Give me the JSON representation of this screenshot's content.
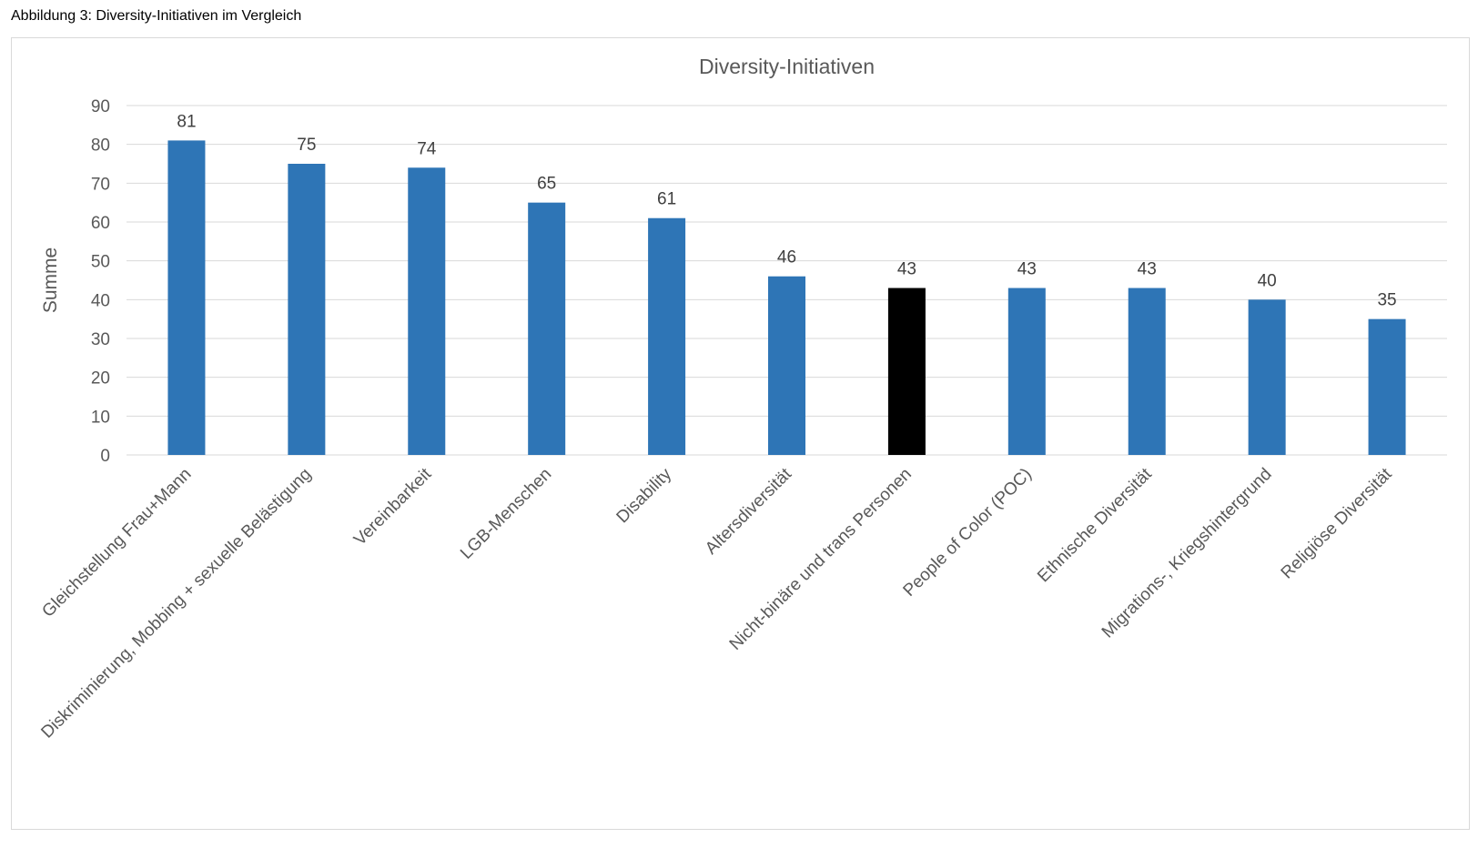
{
  "caption": "Abbildung 3: Diversity-Initiativen im Vergleich",
  "chart_data": {
    "type": "bar",
    "title": "Diversity-Initiativen",
    "xlabel": "",
    "ylabel": "Summe",
    "ylim": [
      0,
      90
    ],
    "yticks": [
      0,
      10,
      20,
      30,
      40,
      50,
      60,
      70,
      80,
      90
    ],
    "grid": true,
    "legend": "none",
    "categories": [
      "Gleichstellung Frau+Mann",
      "Diskriminierung, Mobbing + sexuelle Belästigung",
      "Vereinbarkeit",
      "LGB-Menschen",
      "Disability",
      "Altersdiversität",
      "Nicht-binäre und trans Personen",
      "People of Color (POC)",
      "Ethnische Diversität",
      "Migrations-, Kriegshintergrund",
      "Religiöse Diversität"
    ],
    "values": [
      81,
      75,
      74,
      65,
      61,
      46,
      43,
      43,
      43,
      40,
      35
    ],
    "bar_colors": [
      "#2e75b6",
      "#2e75b6",
      "#2e75b6",
      "#2e75b6",
      "#2e75b6",
      "#2e75b6",
      "#000000",
      "#2e75b6",
      "#2e75b6",
      "#2e75b6",
      "#2e75b6"
    ]
  }
}
